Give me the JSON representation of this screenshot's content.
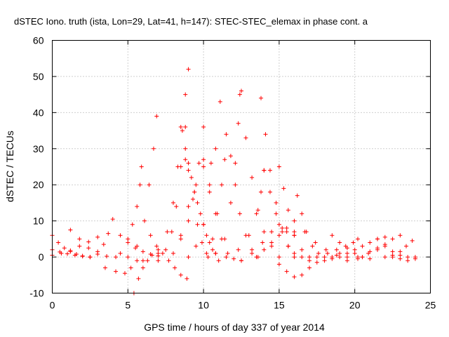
{
  "chart_data": {
    "type": "scatter",
    "title": "dSTEC Iono. truth (ista, Lon=29, Lat=41, h=147): STEC-STEC_elemax in phase cont. a",
    "xlabel": "GPS time / hours of day 337 of year 2014",
    "ylabel": "dSTEC  / TECUs",
    "xlim": [
      0,
      25
    ],
    "ylim": [
      -10,
      60
    ],
    "xticks": [
      0,
      5,
      10,
      15,
      20,
      25
    ],
    "yticks": [
      -10,
      0,
      10,
      20,
      30,
      40,
      50,
      60
    ],
    "grid": true,
    "legend": "none",
    "marker": "plus",
    "color": "#ff0000",
    "series": [
      {
        "x": [
          0.0,
          0.4,
          0.8,
          1.2,
          1.6,
          2.0,
          2.5
        ],
        "y": [
          6,
          4,
          2.5,
          1.5,
          0.8,
          0.3,
          0
        ]
      },
      {
        "x": [
          0.0,
          0.5,
          1.0,
          1.5,
          2.0,
          2.5
        ],
        "y": [
          2,
          1.4,
          0.9,
          0.5,
          0.2,
          0
        ]
      },
      {
        "x": [
          0.0,
          0.6,
          1.2,
          1.8,
          2.4,
          3.0
        ],
        "y": [
          0.5,
          1,
          1.8,
          3,
          4.2,
          5.5
        ]
      },
      {
        "x": [
          1.2,
          1.8,
          2.4,
          3.0,
          3.6,
          4.2
        ],
        "y": [
          7.5,
          5,
          2.5,
          0.8,
          0.2,
          0
        ]
      },
      {
        "x": [
          2.5,
          3.0,
          3.4,
          3.7,
          4.0
        ],
        "y": [
          0,
          1.5,
          3.5,
          6.5,
          10.5
        ]
      },
      {
        "x": [
          3.5,
          4.2,
          4.8,
          5.2,
          5.6
        ],
        "y": [
          -3,
          -4,
          -4.5,
          -3,
          -1
        ]
      },
      {
        "x": [
          4.5,
          5.0,
          5.3,
          5.6,
          5.8,
          5.9
        ],
        "y": [
          1,
          5,
          9,
          14,
          20,
          25
        ]
      },
      {
        "x": [
          4.5,
          5.0,
          5.5,
          6.0,
          6.5,
          7.0
        ],
        "y": [
          6,
          4,
          2.5,
          1.5,
          0.8,
          0.3
        ]
      },
      {
        "x": [
          5.4,
          5.7,
          6.0,
          6.3,
          6.6,
          7.0
        ],
        "y": [
          -10,
          -6,
          -3,
          -1,
          0.5,
          1
        ]
      },
      {
        "x": [
          5.0,
          5.6,
          6.1,
          6.4,
          6.7,
          6.9
        ],
        "y": [
          0,
          3,
          10,
          20,
          30,
          39
        ]
      },
      {
        "x": [
          6.5,
          6.9,
          7.3,
          7.7,
          8.1,
          8.5,
          8.9
        ],
        "y": [
          6,
          3,
          1,
          -1,
          -3,
          -5,
          -6
        ]
      },
      {
        "x": [
          6.0,
          7.0,
          7.6,
          8.0,
          8.3,
          8.6,
          8.8,
          9.0
        ],
        "y": [
          -1,
          2,
          7,
          15,
          25,
          35,
          45,
          52
        ]
      },
      {
        "x": [
          7.0,
          7.5,
          7.9,
          8.2,
          8.5,
          8.8
        ],
        "y": [
          -1,
          2,
          7,
          14,
          25,
          36
        ]
      },
      {
        "x": [
          8.5,
          8.8,
          9.0,
          9.3,
          9.6,
          9.9,
          10.2
        ],
        "y": [
          36,
          30,
          24,
          16,
          9,
          4,
          1
        ]
      },
      {
        "x": [
          8.8,
          9.2,
          9.6,
          10.0,
          10.4,
          10.8
        ],
        "y": [
          27,
          22,
          15,
          9,
          4,
          1
        ]
      },
      {
        "x": [
          8.5,
          9.0,
          9.4,
          9.7,
          10.0
        ],
        "y": [
          5,
          10,
          18,
          26,
          36
        ]
      },
      {
        "x": [
          9.0,
          9.4,
          9.8,
          10.2,
          10.6,
          11.0
        ],
        "y": [
          26,
          18,
          12,
          6,
          2,
          -1
        ]
      },
      {
        "x": [
          8.0,
          8.5,
          9.0,
          9.5,
          10.0,
          10.5
        ],
        "y": [
          1,
          6,
          14,
          20,
          25,
          26
        ]
      },
      {
        "x": [
          9.0,
          9.5,
          10.0,
          10.4,
          10.8,
          11.1
        ],
        "y": [
          0,
          3,
          9,
          18,
          30,
          43
        ]
      },
      {
        "x": [
          10.0,
          10.4,
          10.8,
          11.2,
          11.6,
          12.0,
          12.5
        ],
        "y": [
          27,
          20,
          12,
          5,
          1,
          -0.5,
          -1
        ]
      },
      {
        "x": [
          10.3,
          10.6,
          10.9,
          11.2,
          11.4
        ],
        "y": [
          0,
          5,
          12,
          20,
          27
        ]
      },
      {
        "x": [
          11.5,
          11.8,
          12.1,
          12.4,
          12.8,
          13.2,
          13.6
        ],
        "y": [
          34,
          28,
          20,
          12,
          6,
          2,
          0
        ]
      },
      {
        "x": [
          10.8,
          11.4,
          11.8,
          12.1,
          12.3,
          12.5
        ],
        "y": [
          1,
          5,
          15,
          26,
          37,
          46
        ]
      },
      {
        "x": [
          12.4,
          12.8,
          13.2,
          13.6,
          14.0,
          14.5,
          15.0
        ],
        "y": [
          45,
          33,
          22,
          13,
          7,
          3,
          0
        ]
      },
      {
        "x": [
          13.8,
          14.1,
          14.4,
          14.8,
          15.2,
          15.6,
          16.0
        ],
        "y": [
          44,
          34,
          24,
          15,
          8,
          3,
          0
        ]
      },
      {
        "x": [
          11.5,
          12.3,
          13.0,
          13.5,
          13.8,
          14.0
        ],
        "y": [
          0,
          2,
          6,
          12,
          18,
          24
        ]
      },
      {
        "x": [
          12.5,
          13.2,
          13.9,
          14.5,
          15.0,
          15.5,
          16.0
        ],
        "y": [
          -1,
          1,
          4,
          7,
          9,
          8,
          6
        ]
      },
      {
        "x": [
          13.5,
          14.0,
          14.5,
          15.0,
          15.5,
          16.0
        ],
        "y": [
          0,
          2,
          4,
          6,
          7,
          6
        ]
      },
      {
        "x": [
          14.0,
          14.4,
          14.8,
          15.2,
          15.6,
          16.0
        ],
        "y": [
          24,
          18,
          12,
          7,
          3,
          1
        ]
      },
      {
        "x": [
          15.0,
          15.3,
          15.6,
          16.0,
          16.5,
          17.0
        ],
        "y": [
          25,
          19,
          13,
          7,
          2,
          0
        ]
      },
      {
        "x": [
          15.0,
          15.5,
          16.0,
          16.5,
          17.0
        ],
        "y": [
          -2,
          -4,
          -5.5,
          -5,
          -3
        ]
      },
      {
        "x": [
          16.2,
          16.5,
          16.8,
          17.2,
          17.6,
          18.0,
          18.5
        ],
        "y": [
          17,
          12,
          7,
          3,
          1,
          0,
          -0.5
        ]
      },
      {
        "x": [
          16.5,
          17.0,
          17.5,
          18.0,
          18.5,
          19.0
        ],
        "y": [
          0,
          -1,
          -1.5,
          -1,
          0,
          1
        ]
      },
      {
        "x": [
          16.0,
          16.7,
          17.4,
          18.1,
          18.8,
          19.5,
          20.2
        ],
        "y": [
          10,
          7,
          4,
          2,
          0.5,
          0,
          -0.5
        ]
      },
      {
        "x": [
          17.5,
          18.2,
          18.8,
          19.4,
          19.9,
          20.2
        ],
        "y": [
          0,
          1,
          2,
          3,
          4,
          5
        ]
      },
      {
        "x": [
          18.5,
          19.0,
          19.5,
          20.0,
          20.5,
          21.0
        ],
        "y": [
          6,
          4,
          2.5,
          1,
          0,
          -0.5
        ]
      },
      {
        "x": [
          19.0,
          19.5,
          20.0,
          20.5,
          21.0,
          21.5,
          22.0
        ],
        "y": [
          0,
          1,
          2,
          3,
          4,
          5,
          5.5
        ]
      },
      {
        "x": [
          19.5,
          20.2,
          20.9,
          21.5
        ],
        "y": [
          -1,
          0,
          1,
          2
        ]
      },
      {
        "x": [
          20.5,
          21.0,
          21.5,
          22.0,
          22.5,
          23.0
        ],
        "y": [
          0,
          1.5,
          2.5,
          3.5,
          5,
          6
        ]
      },
      {
        "x": [
          21.5,
          22.0,
          22.5,
          23.0,
          23.5,
          24.0
        ],
        "y": [
          5,
          3,
          1.5,
          0.5,
          0,
          0
        ]
      },
      {
        "x": [
          22.0,
          22.5,
          23.0,
          23.4,
          23.8
        ],
        "y": [
          0,
          0.5,
          1.5,
          3,
          4.5
        ]
      },
      {
        "x": [
          22.5,
          23.0,
          23.5,
          24.0
        ],
        "y": [
          0,
          -0.5,
          -1,
          -0.5
        ]
      }
    ]
  }
}
